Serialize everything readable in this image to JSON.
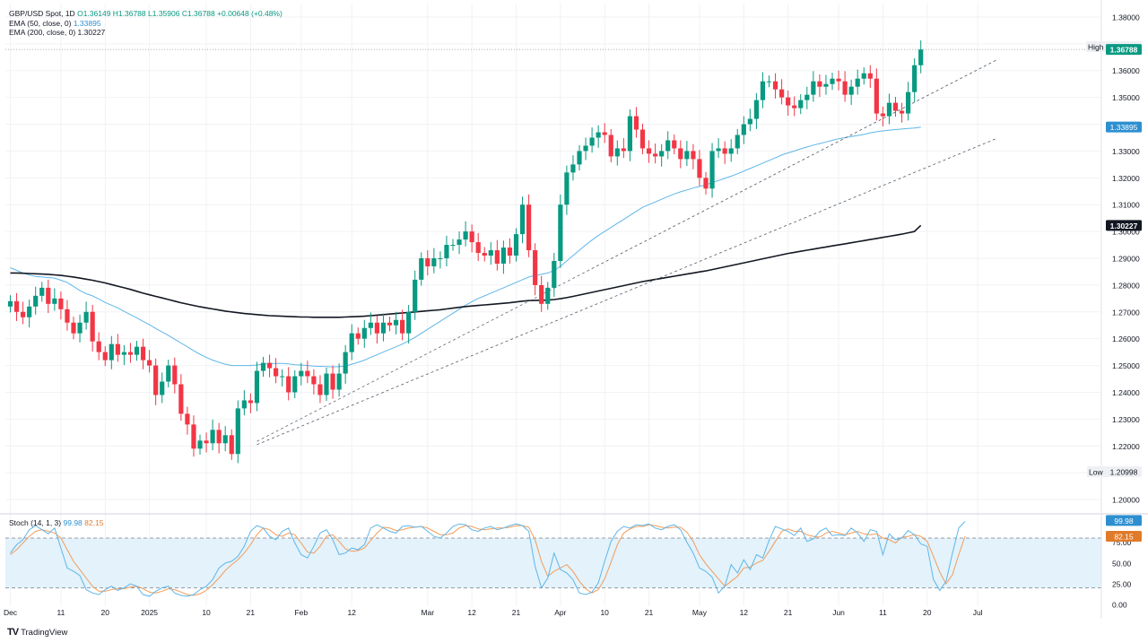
{
  "legend": {
    "symbol": "GBP/USD Spot, 1D",
    "ohlc": "O1.36149  H1.36788  L1.35906  C1.36788  +0.00648 (+0.48%)",
    "ema50_label": "EMA (50, close, 0)",
    "ema50_value": "1.33895",
    "ema200_label": "EMA (200, close, 0)",
    "ema200_value": "1.30227"
  },
  "stoch_legend": {
    "label": "Stoch (14, 1, 3)",
    "k_value": "99.98",
    "d_value": "82.15"
  },
  "markers": {
    "high_label": "High",
    "high_value": "1.36788",
    "last_value": "1.36788",
    "ema50_tag": "1.33895",
    "ema200_tag": "1.30227",
    "low_label": "Low",
    "low_value": "1.20998"
  },
  "branding": {
    "name": "TradingView"
  },
  "colors": {
    "up": "#089981",
    "down": "#f23645",
    "ema50": "#5fb6e8",
    "ema200": "#131722",
    "stoch_k": "#5fb6e8",
    "stoch_d": "#f39c5a",
    "stoch_band": "#e3f2fb"
  },
  "chart_data": [
    {
      "type": "candlestick",
      "title": "GBP/USD Spot, 1D",
      "ylim": [
        1.195,
        1.385
      ],
      "y_ticks": [
        "1.38000",
        "1.37000",
        "1.36000",
        "1.35000",
        "1.34000",
        "1.33000",
        "1.32000",
        "1.31000",
        "1.30000",
        "1.29000",
        "1.28000",
        "1.27000",
        "1.26000",
        "1.25000",
        "1.24000",
        "1.23000",
        "1.22000",
        "1.21000",
        "1.20000"
      ],
      "x_ticks": [
        {
          "label": "Dec",
          "i": 0
        },
        {
          "label": "11",
          "i": 8
        },
        {
          "label": "20",
          "i": 15
        },
        {
          "label": "2025",
          "i": 22
        },
        {
          "label": "10",
          "i": 31
        },
        {
          "label": "21",
          "i": 38
        },
        {
          "label": "Feb",
          "i": 46
        },
        {
          "label": "12",
          "i": 54
        },
        {
          "label": "Mar",
          "i": 66
        },
        {
          "label": "12",
          "i": 73
        },
        {
          "label": "21",
          "i": 80
        },
        {
          "label": "Apr",
          "i": 87
        },
        {
          "label": "10",
          "i": 94
        },
        {
          "label": "21",
          "i": 101
        },
        {
          "label": "May",
          "i": 109
        },
        {
          "label": "12",
          "i": 116
        },
        {
          "label": "21",
          "i": 123
        },
        {
          "label": "Jun",
          "i": 131
        },
        {
          "label": "11",
          "i": 138
        },
        {
          "label": "20",
          "i": 145
        },
        {
          "label": "Jul",
          "i": 153
        }
      ],
      "closes": [
        1.274,
        1.27,
        1.268,
        1.272,
        1.276,
        1.279,
        1.273,
        1.275,
        1.271,
        1.266,
        1.262,
        1.266,
        1.27,
        1.259,
        1.255,
        1.252,
        1.258,
        1.254,
        1.255,
        1.254,
        1.257,
        1.252,
        1.25,
        1.239,
        1.244,
        1.25,
        1.243,
        1.232,
        1.228,
        1.219,
        1.222,
        1.221,
        1.226,
        1.221,
        1.224,
        1.217,
        1.234,
        1.237,
        1.236,
        1.248,
        1.251,
        1.249,
        1.246,
        1.246,
        1.24,
        1.246,
        1.248,
        1.246,
        1.243,
        1.239,
        1.247,
        1.241,
        1.247,
        1.255,
        1.262,
        1.26,
        1.264,
        1.266,
        1.262,
        1.266,
        1.265,
        1.267,
        1.262,
        1.27,
        1.282,
        1.29,
        1.287,
        1.29,
        1.29,
        1.295,
        1.295,
        1.297,
        1.3,
        1.296,
        1.292,
        1.291,
        1.293,
        1.288,
        1.294,
        1.291,
        1.299,
        1.31,
        1.293,
        1.28,
        1.273,
        1.279,
        1.289,
        1.31,
        1.322,
        1.325,
        1.33,
        1.332,
        1.335,
        1.337,
        1.336,
        1.328,
        1.331,
        1.33,
        1.343,
        1.338,
        1.331,
        1.329,
        1.328,
        1.33,
        1.334,
        1.331,
        1.327,
        1.33,
        1.327,
        1.32,
        1.316,
        1.33,
        1.331,
        1.329,
        1.331,
        1.336,
        1.34,
        1.342,
        1.349,
        1.356,
        1.356,
        1.353,
        1.35,
        1.347,
        1.346,
        1.349,
        1.351,
        1.356,
        1.354,
        1.355,
        1.357,
        1.356,
        1.351,
        1.354,
        1.357,
        1.359,
        1.357,
        1.344,
        1.343,
        1.348,
        1.345,
        1.344,
        1.352,
        1.362,
        1.36788
      ],
      "ema50": [
        1.2865,
        1.2855,
        1.2845,
        1.2838,
        1.2832,
        1.283,
        1.2828,
        1.2826,
        1.2818,
        1.281,
        1.2795,
        1.278,
        1.2768,
        1.276,
        1.2748,
        1.2735,
        1.2725,
        1.2715,
        1.2702,
        1.269,
        1.2678,
        1.2665,
        1.2652,
        1.2638,
        1.2625,
        1.2612,
        1.2598,
        1.2584,
        1.257,
        1.2555,
        1.2542,
        1.253,
        1.252,
        1.2512,
        1.2505,
        1.25,
        1.25,
        1.25,
        1.25,
        1.2502,
        1.2505,
        1.2507,
        1.2508,
        1.2508,
        1.2506,
        1.2503,
        1.2502,
        1.25,
        1.2498,
        1.2497,
        1.2496,
        1.2495,
        1.2496,
        1.2498,
        1.2505,
        1.2512,
        1.252,
        1.253,
        1.254,
        1.255,
        1.256,
        1.257,
        1.258,
        1.2592,
        1.2605,
        1.262,
        1.2635,
        1.265,
        1.2665,
        1.268,
        1.2695,
        1.271,
        1.2725,
        1.2738,
        1.275,
        1.276,
        1.277,
        1.278,
        1.279,
        1.28,
        1.281,
        1.282,
        1.283,
        1.2836,
        1.284,
        1.2845,
        1.2855,
        1.287,
        1.289,
        1.291,
        1.293,
        1.295,
        1.2968,
        1.2985,
        1.3,
        1.3015,
        1.303,
        1.3045,
        1.306,
        1.3075,
        1.309,
        1.31,
        1.311,
        1.312,
        1.313,
        1.314,
        1.3148,
        1.3155,
        1.3162,
        1.3168,
        1.3174,
        1.3182,
        1.319,
        1.3198,
        1.3206,
        1.3215,
        1.3225,
        1.3235,
        1.3245,
        1.3255,
        1.3265,
        1.3275,
        1.3285,
        1.3293,
        1.33,
        1.3308,
        1.3315,
        1.3322,
        1.3328,
        1.3334,
        1.334,
        1.3346,
        1.335,
        1.3354,
        1.3358,
        1.3362,
        1.3368,
        1.3372,
        1.3375,
        1.3378,
        1.338,
        1.3382,
        1.3384,
        1.3386,
        1.33895
      ],
      "ema200": [
        1.2845,
        1.2845,
        1.2844,
        1.2843,
        1.2842,
        1.2841,
        1.284,
        1.2838,
        1.2836,
        1.2833,
        1.283,
        1.2826,
        1.2822,
        1.2818,
        1.2813,
        1.2808,
        1.2802,
        1.2796,
        1.279,
        1.2784,
        1.2777,
        1.277,
        1.2764,
        1.2758,
        1.2752,
        1.2746,
        1.274,
        1.2734,
        1.2729,
        1.2724,
        1.2719,
        1.2715,
        1.2711,
        1.2707,
        1.2703,
        1.27,
        1.2697,
        1.2694,
        1.2692,
        1.269,
        1.2688,
        1.2686,
        1.2685,
        1.2684,
        1.2683,
        1.2682,
        1.2681,
        1.2681,
        1.268,
        1.268,
        1.268,
        1.268,
        1.268,
        1.2681,
        1.2682,
        1.2683,
        1.2684,
        1.2686,
        1.2688,
        1.269,
        1.2692,
        1.2694,
        1.2696,
        1.2698,
        1.27,
        1.2702,
        1.2704,
        1.2706,
        1.2708,
        1.2711,
        1.2714,
        1.2717,
        1.272,
        1.2722,
        1.2724,
        1.2726,
        1.2728,
        1.273,
        1.2732,
        1.2734,
        1.2737,
        1.274,
        1.2742,
        1.2743,
        1.2743,
        1.2744,
        1.2746,
        1.2749,
        1.2753,
        1.2758,
        1.2763,
        1.2768,
        1.2773,
        1.2778,
        1.2783,
        1.2788,
        1.2793,
        1.2798,
        1.2803,
        1.2808,
        1.2813,
        1.2817,
        1.2821,
        1.2825,
        1.2829,
        1.2833,
        1.2837,
        1.2841,
        1.2845,
        1.2849,
        1.2853,
        1.2858,
        1.2863,
        1.2868,
        1.2873,
        1.2878,
        1.2883,
        1.2888,
        1.2893,
        1.2898,
        1.2903,
        1.2908,
        1.2913,
        1.2918,
        1.2922,
        1.2926,
        1.293,
        1.2934,
        1.2938,
        1.2942,
        1.2946,
        1.295,
        1.2954,
        1.2958,
        1.2962,
        1.2966,
        1.297,
        1.2974,
        1.2978,
        1.2982,
        1.2986,
        1.299,
        1.2995,
        1.3,
        1.30227
      ],
      "high_level": 1.36788,
      "trendlines": [
        {
          "from": {
            "i": 39,
            "v": 1.2217
          },
          "to": {
            "i": 156,
            "v": 1.364
          }
        },
        {
          "from": {
            "i": 39,
            "v": 1.2205
          },
          "to": {
            "i": 156,
            "v": 1.3347
          }
        }
      ]
    },
    {
      "type": "line",
      "title": "Stoch (14, 1, 3)",
      "ylim": [
        -2,
        108
      ],
      "y_ticks": [
        "100.00",
        "75.00",
        "50.00",
        "25.00",
        "0.00"
      ],
      "band": [
        20,
        80
      ],
      "series": [
        {
          "name": "K",
          "values": [
            62,
            72,
            78,
            90,
            95,
            90,
            85,
            92,
            68,
            44,
            40,
            35,
            18,
            14,
            12,
            18,
            22,
            17,
            20,
            25,
            22,
            12,
            10,
            16,
            20,
            22,
            14,
            11,
            10,
            12,
            18,
            22,
            30,
            44,
            50,
            52,
            58,
            70,
            88,
            95,
            92,
            82,
            78,
            88,
            92,
            74,
            60,
            56,
            70,
            86,
            90,
            78,
            60,
            62,
            68,
            66,
            72,
            92,
            96,
            92,
            88,
            86,
            94,
            95,
            93,
            94,
            88,
            82,
            80,
            86,
            94,
            97,
            96,
            90,
            88,
            92,
            94,
            90,
            92,
            95,
            97,
            95,
            88,
            46,
            20,
            32,
            62,
            42,
            38,
            30,
            14,
            12,
            15,
            26,
            52,
            76,
            88,
            94,
            92,
            96,
            95,
            97,
            92,
            90,
            94,
            96,
            90,
            75,
            62,
            44,
            40,
            33,
            14,
            22,
            48,
            38,
            54,
            42,
            60,
            56,
            77,
            94,
            91,
            88,
            83,
            92,
            76,
            79,
            88,
            92,
            83,
            84,
            83,
            92,
            86,
            76,
            90,
            88,
            60,
            85,
            78,
            80,
            89,
            84,
            73,
            70,
            30,
            17,
            28,
            62,
            92,
            99.98
          ]
        },
        {
          "name": "D",
          "values": [
            60,
            66,
            74,
            82,
            88,
            90,
            88,
            86,
            80,
            66,
            52,
            42,
            32,
            22,
            16,
            16,
            18,
            19,
            19,
            21,
            22,
            19,
            15,
            14,
            16,
            19,
            18,
            15,
            12,
            11,
            13,
            17,
            24,
            32,
            41,
            48,
            54,
            62,
            72,
            84,
            92,
            90,
            84,
            82,
            86,
            84,
            74,
            63,
            62,
            70,
            82,
            84,
            76,
            67,
            64,
            65,
            68,
            77,
            86,
            93,
            92,
            89,
            90,
            92,
            93,
            94,
            92,
            88,
            84,
            84,
            86,
            92,
            95,
            94,
            91,
            90,
            91,
            92,
            92,
            93,
            95,
            95,
            93,
            78,
            52,
            34,
            40,
            44,
            48,
            40,
            28,
            19,
            14,
            18,
            31,
            51,
            72,
            86,
            91,
            94,
            94,
            96,
            95,
            93,
            92,
            93,
            93,
            87,
            76,
            60,
            49,
            40,
            31,
            22,
            28,
            34,
            44,
            45,
            50,
            53,
            64,
            76,
            88,
            91,
            88,
            88,
            84,
            82,
            81,
            86,
            88,
            86,
            84,
            86,
            88,
            85,
            84,
            85,
            80,
            78,
            74,
            81,
            82,
            84,
            82,
            76,
            58,
            39,
            25,
            36,
            60,
            82.15
          ]
        }
      ]
    }
  ]
}
